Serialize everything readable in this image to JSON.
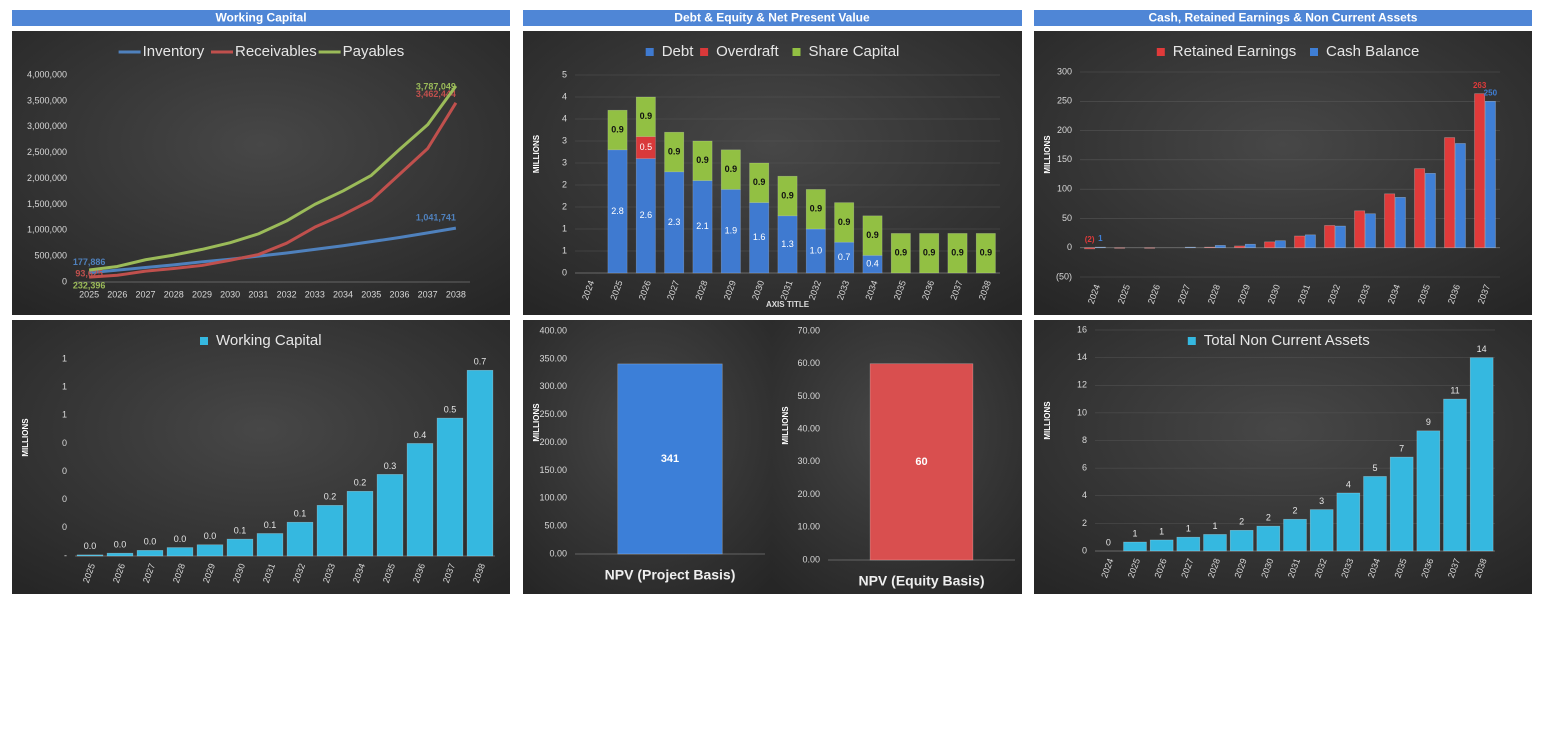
{
  "headers": [
    "Working Capital",
    "Debt & Equity & Net Present Value",
    "Cash, Retained Earnings & Non Current Assets"
  ],
  "chart_data": [
    {
      "type": "line",
      "categories": [
        "2025",
        "2026",
        "2027",
        "2028",
        "2029",
        "2030",
        "2031",
        "2032",
        "2033",
        "2034",
        "2035",
        "2036",
        "2037",
        "2038"
      ],
      "ylim": [
        0,
        4000000
      ],
      "yticks": [
        0,
        {
          "value": 500000,
          "label": "500,000"
        },
        {
          "value": 1000000,
          "label": "1,000,000"
        },
        {
          "value": 1500000,
          "label": "1,500,000"
        },
        {
          "value": 2000000,
          "label": "2,000,000"
        },
        {
          "value": 2500000,
          "label": "2,500,000"
        },
        {
          "value": 3000000,
          "label": "3,000,000"
        },
        {
          "value": 3500000,
          "label": "3,500,000"
        },
        {
          "value": 4000000,
          "label": "4,000,000"
        }
      ],
      "grid": false,
      "series": [
        {
          "name": "Inventory",
          "color": "#4f81bd",
          "values": [
            177886,
            230000,
            280000,
            330000,
            390000,
            440000,
            500000,
            560000,
            630000,
            700000,
            780000,
            860000,
            950000,
            1041741
          ],
          "value_labels": [
            "177,886",
            null,
            null,
            null,
            null,
            null,
            null,
            null,
            null,
            null,
            null,
            null,
            null,
            "1,041,741"
          ]
        },
        {
          "name": "Receivables",
          "color": "#c0504d",
          "values": [
            93625,
            130000,
            210000,
            260000,
            320000,
            420000,
            530000,
            750000,
            1060000,
            1300000,
            1580000,
            2080000,
            2580000,
            3462444
          ],
          "value_labels": [
            "93,625",
            null,
            null,
            null,
            null,
            null,
            null,
            null,
            null,
            null,
            null,
            null,
            null,
            "3,462,444"
          ]
        },
        {
          "name": "Payables",
          "color": "#9bbb59",
          "values": [
            232396,
            300000,
            430000,
            520000,
            630000,
            760000,
            930000,
            1180000,
            1500000,
            1760000,
            2060000,
            2560000,
            3040000,
            3787049
          ],
          "value_labels": [
            "232,396",
            null,
            null,
            null,
            null,
            null,
            null,
            null,
            null,
            null,
            null,
            null,
            null,
            "3,787,049"
          ]
        }
      ]
    },
    {
      "type": "bar",
      "stacked": true,
      "y_label": "MILLIONS",
      "x_label": "AXIS TITLE",
      "categories": [
        "2024",
        "2025",
        "2026",
        "2027",
        "2028",
        "2029",
        "2030",
        "2031",
        "2032",
        "2033",
        "2034",
        "2035",
        "2036",
        "2037",
        "2038"
      ],
      "ylim": [
        0,
        4.5
      ],
      "yticks": [
        0,
        {
          "value": 0.5,
          "label": "1"
        },
        1,
        {
          "value": 1.5,
          "label": "2"
        },
        2,
        {
          "value": 2.5,
          "label": "3"
        },
        3,
        {
          "value": 3.5,
          "label": "4"
        },
        4,
        {
          "value": 4.5,
          "label": "5"
        }
      ],
      "grid": true,
      "series": [
        {
          "name": "Debt",
          "color": "#3f7ad0",
          "values": [
            0,
            2.8,
            2.6,
            2.3,
            2.1,
            1.9,
            1.6,
            1.3,
            1.0,
            0.7,
            0.4,
            0,
            0,
            0,
            0
          ],
          "value_labels": [
            null,
            "2.8",
            "2.6",
            "2.3",
            "2.1",
            "1.9",
            "1.6",
            "1.3",
            "1.0",
            "0.7",
            "0.4",
            null,
            null,
            null,
            null
          ]
        },
        {
          "name": "Overdraft",
          "color": "#d9393a",
          "values": [
            0,
            0,
            0.5,
            0,
            0,
            0,
            0,
            0,
            0,
            0,
            0,
            0,
            0,
            0,
            0
          ]
        },
        {
          "name": "Share Capital",
          "color": "#92c043",
          "values": [
            0,
            0.9,
            0.9,
            0.9,
            0.9,
            0.9,
            0.9,
            0.9,
            0.9,
            0.9,
            0.9,
            0.9,
            0.9,
            0.9,
            0.9
          ]
        }
      ]
    },
    {
      "type": "bar",
      "y_label": "MILLIONS",
      "categories": [
        "2024",
        "2025",
        "2026",
        "2027",
        "2028",
        "2029",
        "2030",
        "2031",
        "2032",
        "2033",
        "2034",
        "2035",
        "2036",
        "2037"
      ],
      "ylim": [
        -50,
        300
      ],
      "yticks": [
        {
          "value": -50,
          "label": "(50)"
        },
        0,
        50,
        100,
        150,
        200,
        250,
        300
      ],
      "grid": true,
      "series": [
        {
          "name": "Retained Earnings",
          "color": "#e03a3a",
          "values": [
            -2,
            -1,
            -1,
            0,
            1,
            3,
            10,
            20,
            38,
            63,
            92,
            135,
            188,
            263
          ],
          "value_labels": [
            "(2)",
            null,
            null,
            null,
            null,
            null,
            null,
            null,
            null,
            null,
            null,
            null,
            null,
            "263"
          ]
        },
        {
          "name": "Cash Balance",
          "color": "#3f7fd6",
          "values": [
            1,
            0,
            0,
            1,
            4,
            6,
            12,
            22,
            37,
            58,
            86,
            127,
            178,
            250
          ],
          "value_labels": [
            "1",
            null,
            null,
            null,
            null,
            null,
            null,
            null,
            null,
            null,
            null,
            null,
            null,
            "250"
          ]
        }
      ]
    },
    {
      "type": "bar",
      "y_label": "MILLIONS",
      "categories": [
        "2025",
        "2026",
        "2027",
        "2028",
        "2029",
        "2030",
        "2031",
        "2032",
        "2033",
        "2034",
        "2035",
        "2036",
        "2037",
        "2038"
      ],
      "ylim": [
        0,
        0.7
      ],
      "yticks": [
        {
          "value": 0,
          "label": "-"
        },
        {
          "value": 0.1,
          "label": "0"
        },
        {
          "value": 0.2,
          "label": "0"
        },
        {
          "value": 0.3,
          "label": "0"
        },
        {
          "value": 0.4,
          "label": "0"
        },
        {
          "value": 0.5,
          "label": "1"
        },
        {
          "value": 0.6,
          "label": "1"
        },
        {
          "value": 0.7,
          "label": "1"
        }
      ],
      "grid": false,
      "series": [
        {
          "name": "Working Capital",
          "color": "#35b8e0",
          "values": [
            0.004,
            0.01,
            0.02,
            0.03,
            0.04,
            0.06,
            0.08,
            0.12,
            0.18,
            0.23,
            0.29,
            0.4,
            0.49,
            0.66
          ],
          "value_labels": [
            "0.0",
            "0.0",
            "0.0",
            "0.0",
            "0.0",
            "0.1",
            "0.1",
            "0.1",
            "0.2",
            "0.2",
            "0.3",
            "0.4",
            "0.5",
            "0.7"
          ]
        }
      ]
    },
    {
      "type": "bar",
      "y_label": "MILLIONS",
      "categories": [
        "NPV (Project Basis)"
      ],
      "ylim": [
        0,
        400
      ],
      "yticks": [
        {
          "value": 0,
          "label": "0.00"
        },
        {
          "value": 50,
          "label": "50.00"
        },
        {
          "value": 100,
          "label": "100.00"
        },
        {
          "value": 150,
          "label": "150.00"
        },
        {
          "value": 200,
          "label": "200.00"
        },
        {
          "value": 250,
          "label": "250.00"
        },
        {
          "value": 300,
          "label": "300.00"
        },
        {
          "value": 350,
          "label": "350.00"
        },
        {
          "value": 400,
          "label": "400.00"
        }
      ],
      "grid": false,
      "series": [
        {
          "color": "#3c7fd8",
          "values": [
            341
          ]
        }
      ]
    },
    {
      "type": "bar",
      "y_label": "MILLIONS",
      "categories": [
        "NPV (Equity Basis)"
      ],
      "ylim": [
        0,
        70
      ],
      "yticks": [
        {
          "value": 0,
          "label": "0.00"
        },
        {
          "value": 10,
          "label": "10.00"
        },
        {
          "value": 20,
          "label": "20.00"
        },
        {
          "value": 30,
          "label": "30.00"
        },
        {
          "value": 40,
          "label": "40.00"
        },
        {
          "value": 50,
          "label": "50.00"
        },
        {
          "value": 60,
          "label": "60.00"
        },
        {
          "value": 70,
          "label": "70.00"
        }
      ],
      "grid": false,
      "series": [
        {
          "color": "#d94f4f",
          "values": [
            60
          ]
        }
      ]
    },
    {
      "type": "bar",
      "y_label": "MILLIONS",
      "categories": [
        "2024",
        "2025",
        "2026",
        "2027",
        "2028",
        "2029",
        "2030",
        "2031",
        "2032",
        "2033",
        "2034",
        "2035",
        "2036",
        "2037",
        "2038"
      ],
      "ylim": [
        0,
        16
      ],
      "yticks": [
        0,
        2,
        4,
        6,
        8,
        10,
        12,
        14,
        16
      ],
      "grid": true,
      "series": [
        {
          "name": "Total Non Current Assets",
          "color": "#35b8e0",
          "values": [
            0,
            0.65,
            0.8,
            1.0,
            1.2,
            1.5,
            1.8,
            2.3,
            3.0,
            4.2,
            5.4,
            6.8,
            8.7,
            11.0,
            14.0
          ],
          "value_labels": [
            "0",
            "1",
            "1",
            "1",
            "1",
            "2",
            "2",
            "2",
            "3",
            "4",
            "5",
            "7",
            "9",
            "11",
            "14"
          ]
        }
      ]
    }
  ]
}
